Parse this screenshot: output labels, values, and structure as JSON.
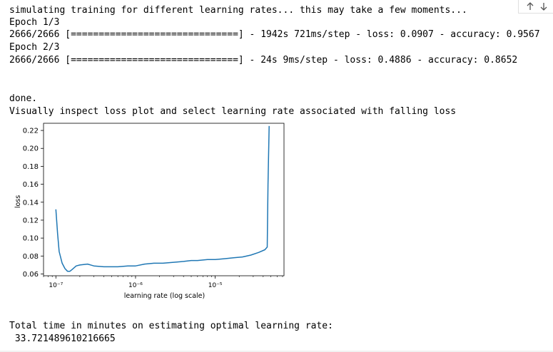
{
  "output": {
    "status_line": "simulating training for different learning rates... this may take a few moments...",
    "epoch1_header": "Epoch 1/3",
    "epoch1_progress": "2666/2666 [==============================] - 1942s 721ms/step - loss: 0.0907 - accuracy: 0.9567",
    "epoch2_header": "Epoch 2/3",
    "epoch2_progress": "2666/2666 [==============================] - 24s 9ms/step - loss: 0.4886 - accuracy: 0.8652",
    "done_line": "done.",
    "instruction_line": "Visually inspect loss plot and select learning rate associated with falling loss",
    "total_time_label": "Total time in minutes on estimating optimal learning rate:",
    "total_time_value": " 33.721489610216665"
  },
  "nav_controls": {
    "up_icon": "arrow-up-icon",
    "down_icon": "arrow-down-icon"
  },
  "colors": {
    "line": "#1f77b4",
    "axis": "#000000"
  },
  "chart_data": {
    "type": "line",
    "title": "",
    "xlabel": "learning rate (log scale)",
    "ylabel": "loss",
    "x_scale": "log",
    "xlim": [
      7e-08,
      7.3e-05
    ],
    "ylim": [
      0.058,
      0.228
    ],
    "x_ticks": [
      {
        "value": 1e-07,
        "label": "10⁻⁷"
      },
      {
        "value": 1e-06,
        "label": "10⁻⁶"
      },
      {
        "value": 1e-05,
        "label": "10⁻⁵"
      }
    ],
    "y_ticks": [
      0.06,
      0.08,
      0.1,
      0.12,
      0.14,
      0.16,
      0.18,
      0.2,
      0.22
    ],
    "y_tick_labels": [
      "0.06",
      "0.08",
      "0.10",
      "0.12",
      "0.14",
      "0.16",
      "0.18",
      "0.20",
      "0.22"
    ],
    "series": [
      {
        "x": [
          1e-07,
          1.05e-07,
          1.1e-07,
          1.2e-07,
          1.3e-07,
          1.4e-07,
          1.5e-07,
          1.6e-07,
          1.8e-07,
          2e-07,
          2.5e-07,
          3e-07,
          4e-07,
          5e-07,
          6e-07,
          8e-07,
          1e-06,
          1.3e-06,
          1.7e-06,
          2.2e-06,
          3e-06,
          4e-06,
          5e-06,
          6e-06,
          8e-06,
          1e-05,
          1.3e-05,
          1.7e-05,
          2.2e-05,
          2.8e-05,
          3.5e-05,
          4.2e-05,
          4.5e-05,
          4.6e-05,
          4.75e-05
        ],
        "y": [
          0.132,
          0.105,
          0.085,
          0.072,
          0.066,
          0.063,
          0.063,
          0.065,
          0.069,
          0.07,
          0.071,
          0.069,
          0.068,
          0.068,
          0.068,
          0.069,
          0.069,
          0.071,
          0.072,
          0.072,
          0.073,
          0.074,
          0.075,
          0.075,
          0.076,
          0.076,
          0.077,
          0.078,
          0.079,
          0.081,
          0.084,
          0.087,
          0.09,
          0.16,
          0.225
        ]
      }
    ]
  }
}
